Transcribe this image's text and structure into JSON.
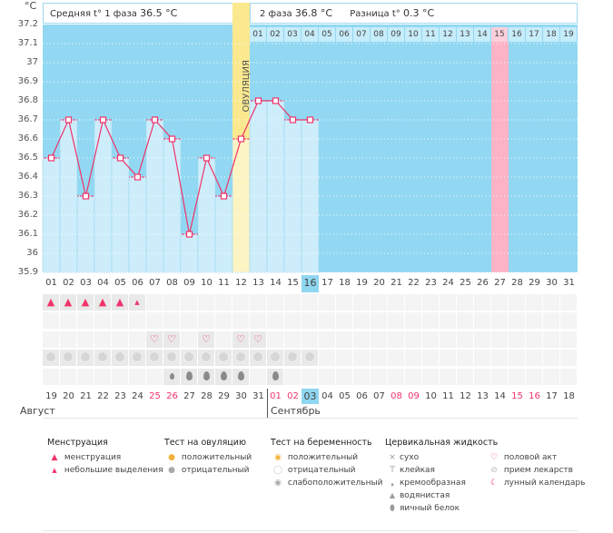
{
  "chart_data": {
    "type": "bar",
    "ylabel": "°C",
    "ylim": [
      35.9,
      37.2
    ],
    "yticks": [
      "37.2",
      "37.1",
      "37",
      "36.9",
      "36.8",
      "36.7",
      "36.6",
      "36.5",
      "36.4",
      "36.3",
      "36.2",
      "36.1",
      "36",
      "35.9"
    ],
    "cycle_days": [
      "01",
      "02",
      "03",
      "04",
      "05",
      "06",
      "07",
      "08",
      "09",
      "10",
      "11",
      "12",
      "13",
      "14",
      "15",
      "16",
      "17",
      "18",
      "19",
      "20",
      "21",
      "22",
      "23",
      "24",
      "25",
      "26",
      "27",
      "28",
      "29",
      "30",
      "31"
    ],
    "temperatures": [
      36.5,
      36.7,
      36.3,
      36.7,
      36.5,
      36.4,
      36.7,
      36.6,
      36.1,
      36.5,
      36.3,
      36.6,
      36.8,
      36.8,
      36.7,
      36.7
    ],
    "ovulation_day": 12,
    "ovulation_label": "ОВУЛЯЦИЯ",
    "phase2_days": [
      "01",
      "02",
      "03",
      "04",
      "05",
      "06",
      "07",
      "08",
      "09",
      "10",
      "11",
      "12",
      "13",
      "14",
      "15",
      "16",
      "17",
      "18",
      "19"
    ],
    "phase2_highlight": "15",
    "current_day": "16",
    "grid": true
  },
  "header": {
    "phase1_label": "Средняя t° 1 фаза",
    "phase1_value": "36.5 °C",
    "phase2_label": "2 фаза",
    "phase2_value": "36.8 °C",
    "diff_label": "Разница t°",
    "diff_value": "0.3 °C"
  },
  "rows": {
    "menstruation": [
      "heavy",
      "heavy",
      "heavy",
      "heavy",
      "heavy",
      "light"
    ],
    "intercourse_days": [
      7,
      8,
      10,
      12,
      13
    ],
    "medication_days": [
      1,
      2,
      3,
      4,
      5,
      6,
      7,
      8,
      9,
      10,
      11,
      12,
      13,
      14,
      15,
      16
    ],
    "cervical_fluid": {
      "8": "watery",
      "9": "egg-white",
      "10": "egg-white",
      "11": "egg-white",
      "12": "egg-white",
      "14": "egg-white"
    }
  },
  "calendar": {
    "dates": [
      "19",
      "20",
      "21",
      "22",
      "23",
      "24",
      "25",
      "26",
      "27",
      "28",
      "29",
      "30",
      "31",
      "01",
      "02",
      "03",
      "04",
      "05",
      "06",
      "07",
      "08",
      "09",
      "10",
      "11",
      "12",
      "13",
      "14",
      "15",
      "16",
      "17",
      "18"
    ],
    "red_dates": [
      6,
      7,
      13,
      14,
      20,
      21,
      27,
      28
    ],
    "today_index": 16,
    "month1": "Август",
    "month2": "Сентябрь"
  },
  "colors": {
    "chart_bg": "#92d8f2",
    "bar": "#cdedfb",
    "line": "#f0336a",
    "ovulation": "#fbe98f",
    "highlight": "#fdb3c6"
  },
  "legend": {
    "menstruation": {
      "title": "Менструация",
      "items": [
        "менструация",
        "небольшие выделения"
      ]
    },
    "ovulation_test": {
      "title": "Тест на овуляцию",
      "items": [
        "положительный",
        "отрицательный"
      ]
    },
    "pregnancy_test": {
      "title": "Тест на беременность",
      "items": [
        "положительный",
        "отрицательный",
        "слабоположительный"
      ]
    },
    "cervical_fluid": {
      "title": "Цервикальная жидкость",
      "items": [
        "сухо",
        "клейкая",
        "кремообразная",
        "водянистая",
        "яичный белок"
      ]
    },
    "other": {
      "items": [
        "половой акт",
        "прием лекарств",
        "лунный календарь"
      ]
    }
  }
}
